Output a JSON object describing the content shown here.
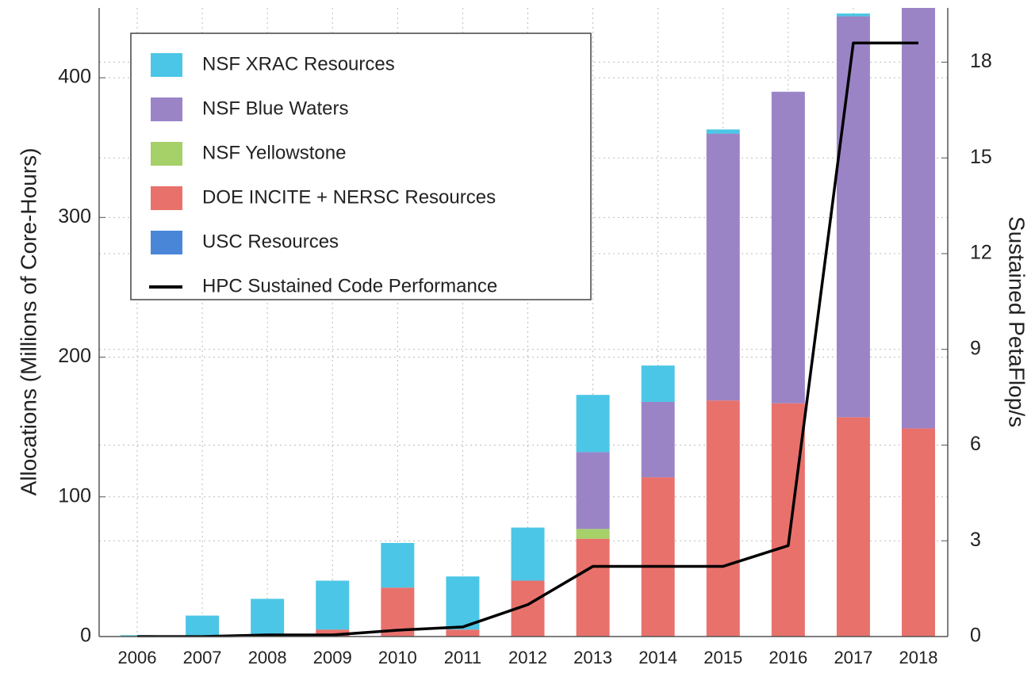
{
  "chart_data": {
    "type": "bar",
    "stacked": true,
    "ylabel": "Allocations (Millions of Core-Hours)",
    "y2label": "Sustained PetaFlop/s",
    "categories": [
      "2006",
      "2007",
      "2008",
      "2009",
      "2010",
      "2011",
      "2012",
      "2013",
      "2014",
      "2015",
      "2016",
      "2017",
      "2018"
    ],
    "series": [
      {
        "name": "NSF XRAC Resources",
        "color": "#4cc6e6",
        "values": [
          1,
          15,
          27,
          35,
          32,
          38,
          38,
          41,
          26,
          3,
          0,
          2,
          0
        ]
      },
      {
        "name": "NSF Blue Waters",
        "color": "#9a84c6",
        "values": [
          0,
          0,
          0,
          0,
          0,
          0,
          0,
          55,
          54,
          191,
          223,
          287,
          305
        ]
      },
      {
        "name": "NSF Yellowstone",
        "color": "#a6d068",
        "values": [
          0,
          0,
          0,
          0,
          0,
          0,
          0,
          7,
          0,
          0,
          0,
          0,
          0
        ]
      },
      {
        "name": "DOE INCITE + NERSC Resources",
        "color": "#e8716c",
        "values": [
          0,
          0,
          0,
          5,
          35,
          5,
          40,
          70,
          114,
          169,
          167,
          157,
          149
        ]
      },
      {
        "name": "USC Resources",
        "color": "#4a86d8",
        "values": [
          0,
          0,
          0,
          0,
          0,
          0,
          0,
          0,
          0,
          0,
          0,
          0,
          0
        ]
      },
      {
        "name": "HPC Sustained Code Performance",
        "type": "line",
        "axis": "y2",
        "color": "#000000",
        "values": [
          0,
          0,
          0.05,
          0.05,
          0.2,
          0.3,
          1.0,
          2.2,
          2.2,
          2.2,
          2.85,
          18.6,
          18.6
        ]
      }
    ],
    "ylim": [
      0,
      450
    ],
    "yticks": [
      0,
      100,
      200,
      300,
      400
    ],
    "y2lim": [
      0,
      19.7
    ],
    "y2ticks": [
      0,
      3,
      6,
      9,
      12,
      15,
      18
    ],
    "grid": true,
    "legend": "upper left"
  }
}
